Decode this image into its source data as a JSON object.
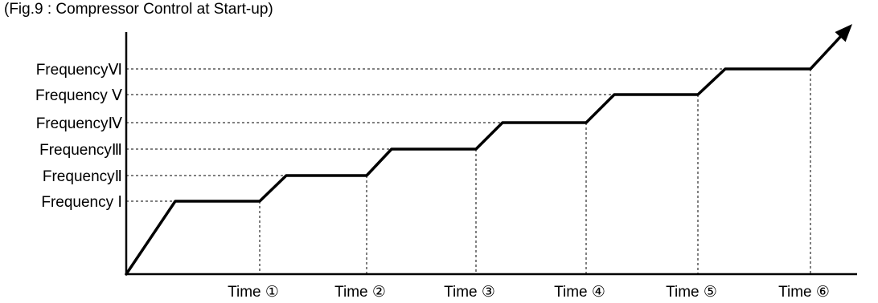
{
  "title": "(Fig.9 : Compressor Control at Start-up)",
  "chart_data": {
    "type": "line",
    "title": "(Fig.9 : Compressor Control at Start-up)",
    "xlabel": "",
    "ylabel": "",
    "grid": false,
    "y_levels": [
      "Frequency Ⅰ",
      "FrequencyⅡ",
      "FrequencyⅢ",
      "FrequencyⅣ",
      "Frequency Ⅴ",
      "FrequencyⅥ"
    ],
    "x_ticks": [
      "Time ①",
      "Time ②",
      "Time ③",
      "Time ④",
      "Time ⑤",
      "Time ⑥"
    ],
    "series": [
      {
        "x": [
          0,
          0.5,
          1,
          1.25,
          2,
          2.25,
          3,
          3.25,
          4,
          4.25,
          5,
          5.25,
          6,
          6.5
        ],
        "y": [
          0,
          1,
          1,
          2,
          2,
          3,
          3,
          4,
          4,
          5,
          5,
          6,
          6,
          7
        ]
      }
    ],
    "xlim": [
      0,
      7
    ],
    "ylim": [
      0,
      7
    ],
    "arrow_at_end": true,
    "colors": {
      "line": "#000000",
      "guide": "#000000",
      "axis": "#000000"
    }
  }
}
